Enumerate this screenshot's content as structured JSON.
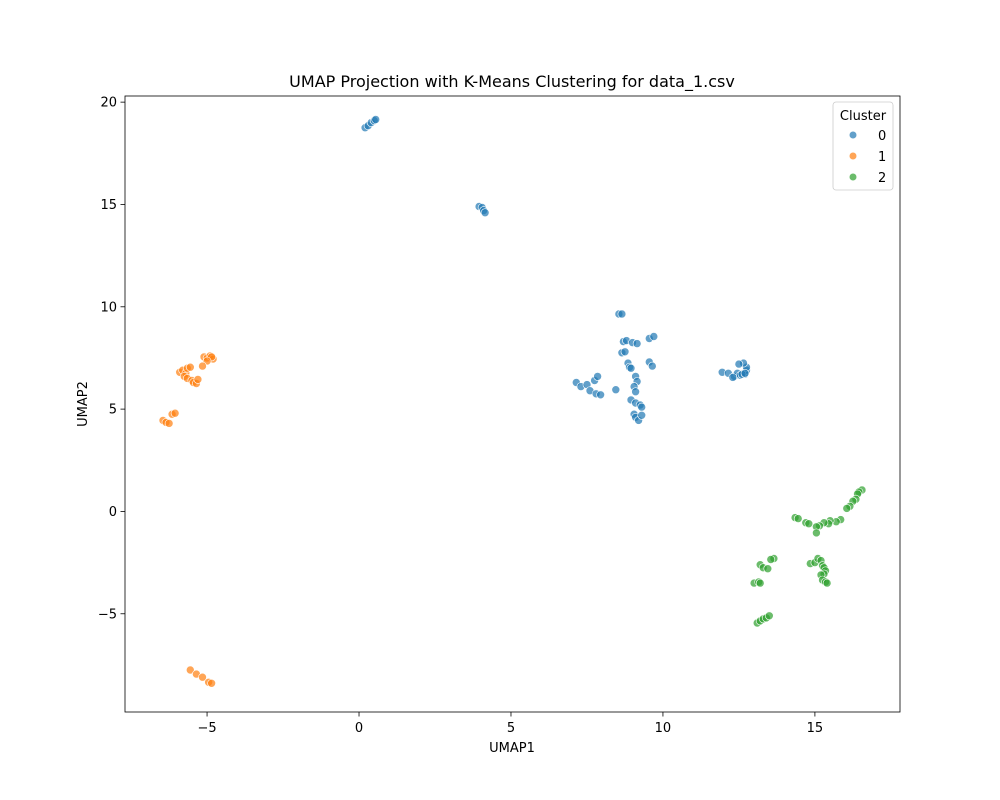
{
  "chart_data": {
    "type": "scatter",
    "title": "UMAP Projection with K-Means Clustering for data_1.csv",
    "xlabel": "UMAP1",
    "ylabel": "UMAP2",
    "xlim": [
      -7.7,
      17.8
    ],
    "ylim": [
      -9.8,
      20.3
    ],
    "xticks": [
      -5,
      0,
      5,
      10,
      15
    ],
    "xtick_labels": [
      "−5",
      "0",
      "5",
      "10",
      "15"
    ],
    "yticks": [
      -5,
      0,
      5,
      10,
      15,
      20
    ],
    "ytick_labels": [
      "−5",
      "0",
      "5",
      "10",
      "15",
      "20"
    ],
    "grid": false,
    "legend": {
      "title": "Cluster",
      "placement": "top-right"
    },
    "series": [
      {
        "name": "0",
        "color": "#1f77b4",
        "points": [
          [
            0.2,
            18.75
          ],
          [
            0.3,
            18.85
          ],
          [
            0.4,
            19.0
          ],
          [
            0.5,
            19.1
          ],
          [
            0.55,
            19.15
          ],
          [
            3.95,
            14.9
          ],
          [
            4.05,
            14.85
          ],
          [
            4.1,
            14.7
          ],
          [
            4.15,
            14.6
          ],
          [
            8.55,
            9.65
          ],
          [
            8.65,
            9.65
          ],
          [
            8.7,
            8.3
          ],
          [
            8.8,
            8.35
          ],
          [
            9.0,
            8.25
          ],
          [
            9.15,
            8.2
          ],
          [
            9.55,
            8.45
          ],
          [
            9.7,
            8.55
          ],
          [
            8.65,
            7.75
          ],
          [
            8.75,
            7.8
          ],
          [
            8.85,
            7.25
          ],
          [
            8.9,
            7.05
          ],
          [
            8.95,
            7.0
          ],
          [
            9.55,
            7.3
          ],
          [
            9.65,
            7.1
          ],
          [
            9.1,
            6.6
          ],
          [
            9.15,
            6.35
          ],
          [
            9.05,
            6.1
          ],
          [
            9.1,
            5.85
          ],
          [
            7.15,
            6.3
          ],
          [
            7.3,
            6.1
          ],
          [
            7.5,
            6.2
          ],
          [
            7.6,
            5.9
          ],
          [
            7.8,
            5.75
          ],
          [
            7.95,
            5.7
          ],
          [
            7.75,
            6.4
          ],
          [
            7.85,
            6.6
          ],
          [
            8.45,
            5.95
          ],
          [
            8.95,
            5.45
          ],
          [
            9.1,
            5.3
          ],
          [
            9.25,
            5.2
          ],
          [
            9.3,
            5.1
          ],
          [
            9.05,
            4.75
          ],
          [
            9.1,
            4.6
          ],
          [
            9.2,
            4.45
          ],
          [
            9.3,
            4.7
          ],
          [
            11.95,
            6.8
          ],
          [
            12.15,
            6.75
          ],
          [
            12.35,
            6.6
          ],
          [
            12.45,
            6.75
          ],
          [
            12.55,
            6.65
          ],
          [
            12.7,
            6.7
          ],
          [
            12.75,
            6.9
          ],
          [
            12.75,
            7.05
          ],
          [
            12.65,
            7.25
          ],
          [
            12.5,
            7.2
          ],
          [
            12.3,
            6.55
          ],
          [
            12.6,
            6.7
          ],
          [
            12.7,
            6.75
          ]
        ]
      },
      {
        "name": "1",
        "color": "#ff7f0e",
        "points": [
          [
            -6.45,
            4.45
          ],
          [
            -6.35,
            4.35
          ],
          [
            -6.25,
            4.3
          ],
          [
            -6.15,
            4.75
          ],
          [
            -6.05,
            4.8
          ],
          [
            -5.9,
            6.8
          ],
          [
            -5.8,
            6.9
          ],
          [
            -5.7,
            6.75
          ],
          [
            -5.65,
            7.0
          ],
          [
            -5.55,
            7.05
          ],
          [
            -5.75,
            6.6
          ],
          [
            -5.65,
            6.5
          ],
          [
            -5.5,
            6.4
          ],
          [
            -5.45,
            6.3
          ],
          [
            -5.35,
            6.25
          ],
          [
            -5.3,
            6.45
          ],
          [
            -5.1,
            7.55
          ],
          [
            -5.0,
            7.5
          ],
          [
            -4.9,
            7.6
          ],
          [
            -4.8,
            7.45
          ],
          [
            -4.85,
            7.55
          ],
          [
            -5.0,
            7.35
          ],
          [
            -5.15,
            7.1
          ],
          [
            -5.55,
            -7.75
          ],
          [
            -5.35,
            -7.95
          ],
          [
            -5.15,
            -8.1
          ],
          [
            -4.95,
            -8.35
          ],
          [
            -4.85,
            -8.4
          ]
        ]
      },
      {
        "name": "2",
        "color": "#2ca02c",
        "points": [
          [
            16.55,
            1.05
          ],
          [
            16.45,
            0.95
          ],
          [
            16.4,
            0.85
          ],
          [
            16.35,
            0.6
          ],
          [
            16.25,
            0.5
          ],
          [
            16.15,
            0.25
          ],
          [
            16.05,
            0.15
          ],
          [
            15.85,
            -0.4
          ],
          [
            15.7,
            -0.5
          ],
          [
            15.5,
            -0.45
          ],
          [
            15.45,
            -0.6
          ],
          [
            15.3,
            -0.55
          ],
          [
            15.15,
            -0.7
          ],
          [
            15.05,
            -0.75
          ],
          [
            15.05,
            -1.05
          ],
          [
            14.35,
            -0.3
          ],
          [
            14.45,
            -0.35
          ],
          [
            14.7,
            -0.55
          ],
          [
            14.8,
            -0.6
          ],
          [
            14.85,
            -2.55
          ],
          [
            15.0,
            -2.5
          ],
          [
            15.1,
            -2.3
          ],
          [
            15.2,
            -2.4
          ],
          [
            15.25,
            -2.65
          ],
          [
            15.3,
            -2.75
          ],
          [
            15.35,
            -2.9
          ],
          [
            15.3,
            -3.05
          ],
          [
            15.2,
            -3.1
          ],
          [
            15.25,
            -3.35
          ],
          [
            15.35,
            -3.45
          ],
          [
            15.4,
            -3.5
          ],
          [
            13.65,
            -2.3
          ],
          [
            13.55,
            -2.35
          ],
          [
            13.2,
            -2.6
          ],
          [
            13.3,
            -2.75
          ],
          [
            13.45,
            -2.8
          ],
          [
            13.0,
            -3.5
          ],
          [
            13.15,
            -3.45
          ],
          [
            13.2,
            -3.5
          ],
          [
            13.1,
            -5.45
          ],
          [
            13.2,
            -5.35
          ],
          [
            13.3,
            -5.25
          ],
          [
            13.4,
            -5.2
          ],
          [
            13.5,
            -5.1
          ]
        ]
      }
    ]
  }
}
